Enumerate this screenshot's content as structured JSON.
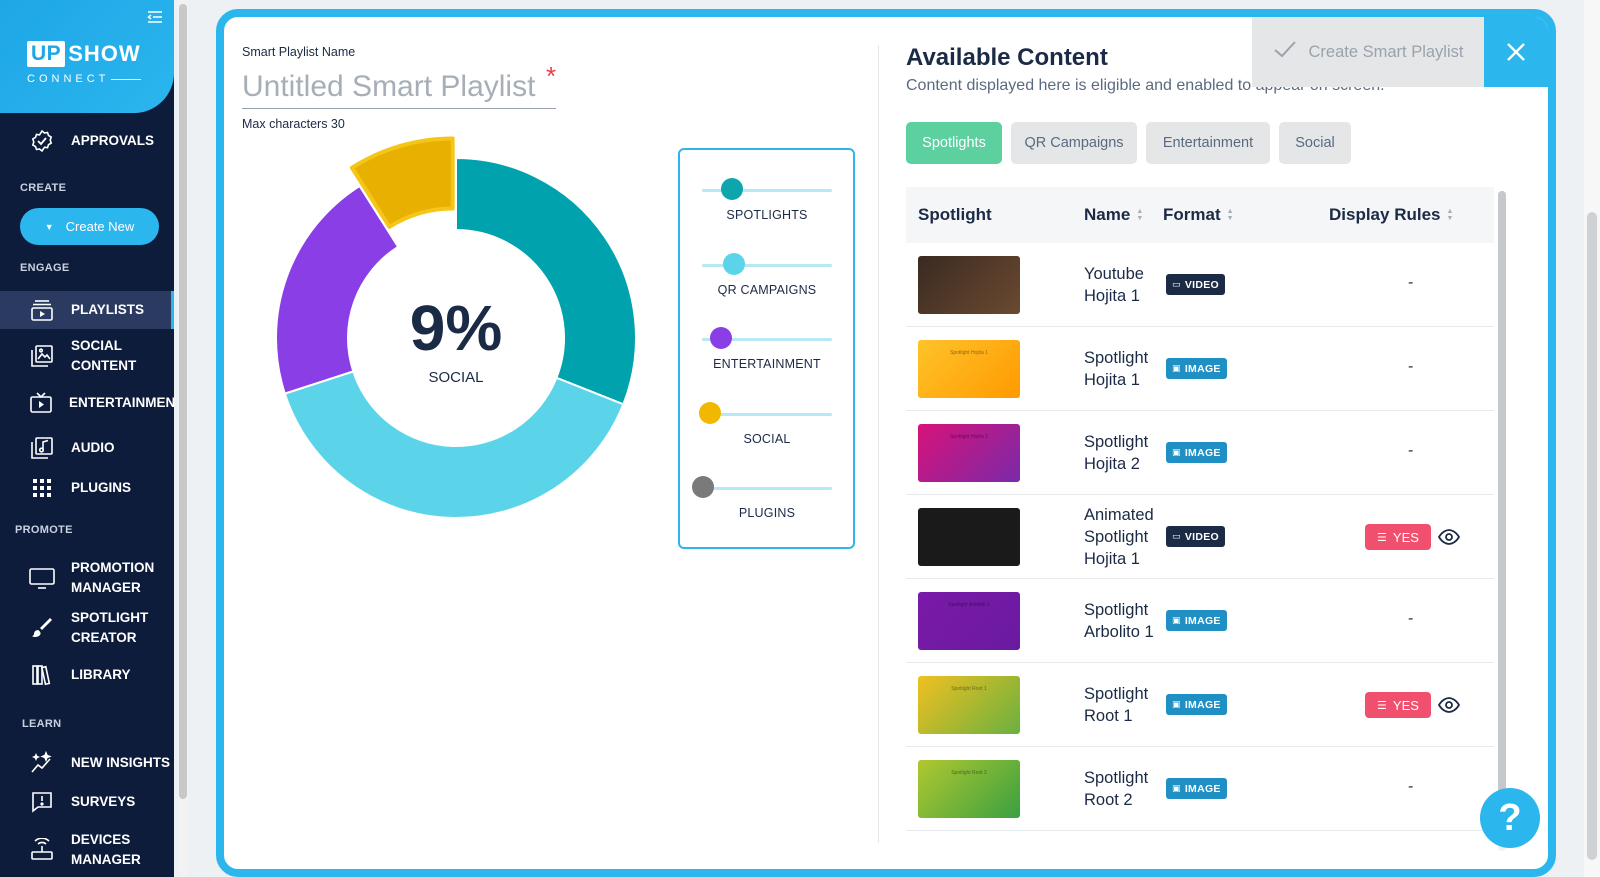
{
  "sidebar": {
    "logo": {
      "up": "UP",
      "show": "SHOW",
      "sub": "CONNECT"
    },
    "sections": {
      "create": "CREATE",
      "engage": "ENGAGE",
      "promote": "PROMOTE",
      "learn": "LEARN"
    },
    "create_button": "Create New",
    "items": {
      "approvals": "APPROVALS",
      "playlists": "PLAYLISTS",
      "social_content": "SOCIAL CONTENT",
      "entertainment": "ENTERTAINMENT",
      "audio": "AUDIO",
      "plugins": "PLUGINS",
      "promotion_manager": "PROMOTION MANAGER",
      "spotlight_creator": "SPOTLIGHT CREATOR",
      "library": "LIBRARY",
      "new_insights": "NEW INSIGHTS",
      "surveys": "SURVEYS",
      "devices_manager": "DEVICES MANAGER"
    }
  },
  "editor": {
    "name_label": "Smart Playlist Name",
    "name_placeholder": "Untitled Smart Playlist",
    "required_mark": "*",
    "max_chars": "Max characters 30",
    "donut": {
      "center_value": "9%",
      "center_label": "SOCIAL",
      "segments": [
        {
          "name": "SPOTLIGHTS",
          "share": 0.31,
          "color": "#00a3ad"
        },
        {
          "name": "QR CAMPAIGNS",
          "share": 0.39,
          "color": "#5bd4ea"
        },
        {
          "name": "ENTERTAINMENT",
          "share": 0.21,
          "color": "#8a3ee6"
        },
        {
          "name": "SOCIAL",
          "share": 0.09,
          "color": "#e8b000",
          "highlighted": true
        }
      ]
    },
    "sliders": [
      {
        "label": "SPOTLIGHTS",
        "level": 0.22,
        "color": "#0ea5ad"
      },
      {
        "label": "QR CAMPAIGNS",
        "level": 0.24,
        "color": "#5bd4ea"
      },
      {
        "label": "ENTERTAINMENT",
        "level": 0.14,
        "color": "#8a3ee6"
      },
      {
        "label": "SOCIAL",
        "level": 0.05,
        "color": "#f2b800"
      },
      {
        "label": "PLUGINS",
        "level": 0.0,
        "color": "#7a7a7a"
      }
    ]
  },
  "content": {
    "title": "Available Content",
    "subtitle": "Content displayed here is eligible and enabled to appear on screen.",
    "create_button": "Create Smart Playlist",
    "close_icon": "close-icon",
    "tabs": [
      {
        "label": "Spotlights",
        "active": true
      },
      {
        "label": "QR Campaigns",
        "active": false
      },
      {
        "label": "Entertainment",
        "active": false
      },
      {
        "label": "Social",
        "active": false
      }
    ],
    "columns": {
      "spotlight": "Spotlight",
      "name": "Name",
      "format": "Format",
      "display_rules": "Display Rules"
    },
    "rows": [
      {
        "name_lines": [
          "Youtube",
          "Hojita 1"
        ],
        "format": "VIDEO",
        "rule": "-",
        "thumb_colors": [
          "#3a2a22",
          "#6b4a30"
        ],
        "thumb_text": ""
      },
      {
        "name_lines": [
          "Spotlight",
          "Hojita 1"
        ],
        "format": "IMAGE",
        "rule": "-",
        "thumb_colors": [
          "#ffc32a",
          "#ff9a00"
        ],
        "thumb_text": "Spotlight Hojita 1"
      },
      {
        "name_lines": [
          "Spotlight",
          "Hojita 2"
        ],
        "format": "IMAGE",
        "rule": "-",
        "thumb_colors": [
          "#d8127a",
          "#7a2aa8"
        ],
        "thumb_text": "Spotlight Hojita 2"
      },
      {
        "name_lines": [
          "Animated",
          "Spotlight",
          "Hojita 1"
        ],
        "format": "VIDEO",
        "rule": "YES",
        "thumb_colors": [
          "#1a1a1a",
          "#1a1a1a"
        ],
        "thumb_text": ""
      },
      {
        "name_lines": [
          "Spotlight",
          "Arbolito 1"
        ],
        "format": "IMAGE",
        "rule": "-",
        "thumb_colors": [
          "#7a1aa8",
          "#6a1aa0"
        ],
        "thumb_text": "Spotlight Arbolito 1"
      },
      {
        "name_lines": [
          "Spotlight",
          "Root 1"
        ],
        "format": "IMAGE",
        "rule": "YES",
        "thumb_colors": [
          "#f0c020",
          "#6ab040"
        ],
        "thumb_text": "Spotlight Root 1"
      },
      {
        "name_lines": [
          "Spotlight",
          "Root 2"
        ],
        "format": "IMAGE",
        "rule": "-",
        "thumb_colors": [
          "#b0c830",
          "#3aa040"
        ],
        "thumb_text": "Spotlight Root 2"
      }
    ]
  },
  "help": {
    "label": "?"
  }
}
